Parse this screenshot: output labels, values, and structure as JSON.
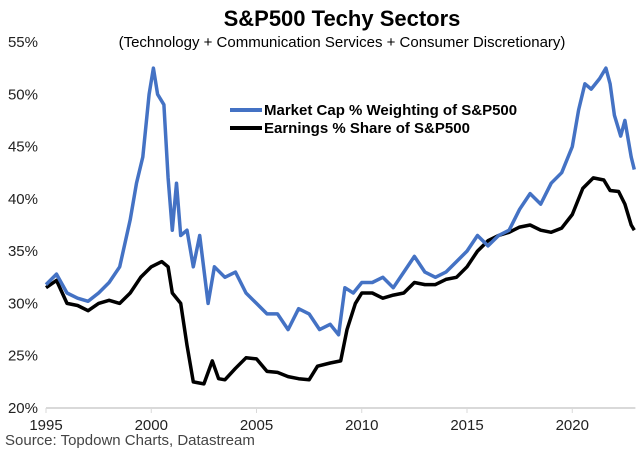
{
  "chart_data": {
    "type": "line",
    "title": "S&P500 Techy Sectors",
    "subtitle": "(Technology + Communication Services + Consumer Discretionary)",
    "xlabel": "",
    "ylabel": "",
    "xlim": [
      1995,
      2023
    ],
    "ylim": [
      20,
      55
    ],
    "x_ticks": [
      "1995",
      "2000",
      "2005",
      "2010",
      "2015",
      "2020"
    ],
    "y_ticks": [
      "20%",
      "25%",
      "30%",
      "35%",
      "40%",
      "45%",
      "50%",
      "55%"
    ],
    "grid": false,
    "legend_position": "top-center",
    "source": "Source: Topdown Charts, Datastream",
    "series": [
      {
        "name": "Market Cap % Weighting of S&P500",
        "color": "#4472C4",
        "points": [
          [
            1995.0,
            31.8
          ],
          [
            1995.5,
            32.8
          ],
          [
            1996.0,
            31
          ],
          [
            1996.5,
            30.5
          ],
          [
            1997.0,
            30.2
          ],
          [
            1997.5,
            31
          ],
          [
            1998.0,
            32
          ],
          [
            1998.5,
            33.5
          ],
          [
            1999.0,
            38
          ],
          [
            1999.3,
            41.5
          ],
          [
            1999.6,
            44
          ],
          [
            1999.9,
            50
          ],
          [
            2000.1,
            52.5
          ],
          [
            2000.3,
            50
          ],
          [
            2000.6,
            49
          ],
          [
            2000.8,
            42
          ],
          [
            2001.0,
            37
          ],
          [
            2001.2,
            41.5
          ],
          [
            2001.4,
            36.5
          ],
          [
            2001.7,
            37
          ],
          [
            2002.0,
            33.5
          ],
          [
            2002.3,
            36.5
          ],
          [
            2002.7,
            30
          ],
          [
            2003.0,
            33.5
          ],
          [
            2003.5,
            32.5
          ],
          [
            2004.0,
            33
          ],
          [
            2004.5,
            31
          ],
          [
            2005.0,
            30
          ],
          [
            2005.5,
            29
          ],
          [
            2006.0,
            29
          ],
          [
            2006.5,
            27.5
          ],
          [
            2007.0,
            29.5
          ],
          [
            2007.5,
            29
          ],
          [
            2008.0,
            27.5
          ],
          [
            2008.5,
            28
          ],
          [
            2008.9,
            27
          ],
          [
            2009.2,
            31.5
          ],
          [
            2009.6,
            31
          ],
          [
            2010.0,
            32
          ],
          [
            2010.5,
            32
          ],
          [
            2011.0,
            32.5
          ],
          [
            2011.5,
            31.5
          ],
          [
            2012.0,
            33
          ],
          [
            2012.5,
            34.5
          ],
          [
            2013.0,
            33
          ],
          [
            2013.5,
            32.5
          ],
          [
            2014.0,
            33
          ],
          [
            2014.5,
            34
          ],
          [
            2015.0,
            35
          ],
          [
            2015.5,
            36.5
          ],
          [
            2016.0,
            35.5
          ],
          [
            2016.5,
            36.5
          ],
          [
            2017.0,
            37
          ],
          [
            2017.5,
            39
          ],
          [
            2018.0,
            40.5
          ],
          [
            2018.5,
            39.5
          ],
          [
            2019.0,
            41.5
          ],
          [
            2019.5,
            42.5
          ],
          [
            2020.0,
            45
          ],
          [
            2020.3,
            48.5
          ],
          [
            2020.6,
            51
          ],
          [
            2020.9,
            50.5
          ],
          [
            2021.3,
            51.5
          ],
          [
            2021.6,
            52.5
          ],
          [
            2021.8,
            51
          ],
          [
            2022.0,
            48
          ],
          [
            2022.3,
            46
          ],
          [
            2022.5,
            47.5
          ],
          [
            2022.8,
            44
          ],
          [
            2022.95,
            42.8
          ]
        ]
      },
      {
        "name": "Earnings % Share of S&P500",
        "color": "#000000",
        "points": [
          [
            1995.0,
            31.5
          ],
          [
            1995.5,
            32.2
          ],
          [
            1996.0,
            30
          ],
          [
            1996.5,
            29.8
          ],
          [
            1997.0,
            29.3
          ],
          [
            1997.5,
            30
          ],
          [
            1998.0,
            30.3
          ],
          [
            1998.5,
            30
          ],
          [
            1999.0,
            31
          ],
          [
            1999.5,
            32.5
          ],
          [
            2000.0,
            33.5
          ],
          [
            2000.5,
            34
          ],
          [
            2000.8,
            33.5
          ],
          [
            2001.0,
            31
          ],
          [
            2001.4,
            30
          ],
          [
            2001.7,
            26
          ],
          [
            2002.0,
            22.5
          ],
          [
            2002.5,
            22.3
          ],
          [
            2002.9,
            24.5
          ],
          [
            2003.2,
            22.8
          ],
          [
            2003.5,
            22.7
          ],
          [
            2004.0,
            23.8
          ],
          [
            2004.5,
            24.8
          ],
          [
            2005.0,
            24.7
          ],
          [
            2005.5,
            23.5
          ],
          [
            2006.0,
            23.4
          ],
          [
            2006.5,
            23
          ],
          [
            2007.0,
            22.8
          ],
          [
            2007.5,
            22.7
          ],
          [
            2007.9,
            24
          ],
          [
            2008.5,
            24.3
          ],
          [
            2009.0,
            24.5
          ],
          [
            2009.3,
            27.5
          ],
          [
            2009.7,
            30
          ],
          [
            2010.0,
            31
          ],
          [
            2010.5,
            31
          ],
          [
            2011.0,
            30.5
          ],
          [
            2011.5,
            30.8
          ],
          [
            2012.0,
            31
          ],
          [
            2012.5,
            32
          ],
          [
            2013.0,
            31.8
          ],
          [
            2013.5,
            31.8
          ],
          [
            2014.0,
            32.3
          ],
          [
            2014.5,
            32.5
          ],
          [
            2015.0,
            33.5
          ],
          [
            2015.5,
            35
          ],
          [
            2016.0,
            36
          ],
          [
            2016.5,
            36.5
          ],
          [
            2017.0,
            36.8
          ],
          [
            2017.5,
            37.3
          ],
          [
            2018.0,
            37.5
          ],
          [
            2018.5,
            37
          ],
          [
            2019.0,
            36.8
          ],
          [
            2019.5,
            37.2
          ],
          [
            2020.0,
            38.5
          ],
          [
            2020.5,
            41
          ],
          [
            2021.0,
            42
          ],
          [
            2021.5,
            41.8
          ],
          [
            2021.8,
            40.8
          ],
          [
            2022.2,
            40.7
          ],
          [
            2022.5,
            39.5
          ],
          [
            2022.8,
            37.5
          ],
          [
            2022.95,
            37
          ]
        ]
      }
    ]
  }
}
